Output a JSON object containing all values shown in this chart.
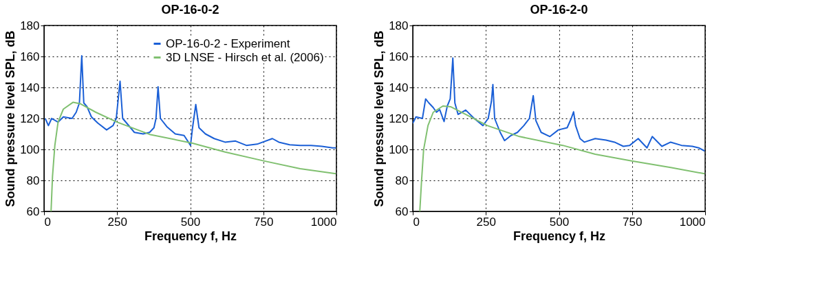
{
  "chart_data": [
    {
      "type": "line",
      "title": "OP-16-0-2",
      "xlabel": "Frequency f, Hz",
      "ylabel": "Sound pressure level SPL, dB",
      "xlim": [
        0,
        1000
      ],
      "ylim": [
        60,
        180
      ],
      "xticks": [
        0,
        250,
        500,
        750,
        1000
      ],
      "yticks": [
        60,
        80,
        100,
        120,
        140,
        160,
        180
      ],
      "grid": true,
      "legend": "top right",
      "series": [
        {
          "name": "OP-16-0-2 - Experiment",
          "color": "#1a5fd6",
          "x": [
            4,
            15,
            26,
            48,
            66,
            96,
            110,
            121,
            129,
            136,
            147,
            162,
            184,
            214,
            236,
            247,
            260,
            269,
            287,
            309,
            339,
            361,
            376,
            383,
            390,
            398,
            420,
            449,
            479,
            501,
            508,
            519,
            530,
            552,
            582,
            619,
            655,
            692,
            729,
            781,
            803,
            840,
            876,
            913,
            950,
            987,
            998
          ],
          "values": [
            120,
            115.4,
            120,
            117.6,
            121,
            120,
            124,
            130,
            160.4,
            130,
            127.6,
            121,
            117,
            112.6,
            115.4,
            120,
            144,
            120,
            116,
            111,
            110,
            111,
            114,
            120,
            140.4,
            120,
            114.7,
            110,
            109,
            102.6,
            114,
            129,
            114,
            110,
            107,
            104.7,
            105.4,
            102.6,
            103.4,
            107,
            104.7,
            103,
            102.6,
            102.6,
            102,
            101,
            101
          ]
        },
        {
          "name": "3D LNSE - Hirsch et al. (2006)",
          "color": "#80c070",
          "x": [
            24,
            29,
            37,
            48,
            66,
            99,
            125,
            177,
            250,
            361,
            508,
            619,
            751,
            876,
            998
          ],
          "values": [
            60,
            82.6,
            102.6,
            117.6,
            126,
            130.4,
            129.4,
            124,
            117.6,
            109.7,
            104,
            98.3,
            92.6,
            87.6,
            84.3
          ]
        }
      ]
    },
    {
      "type": "line",
      "title": "OP-16-2-0",
      "xlabel": "Frequency f, Hz",
      "ylabel": "Sound pressure level SPL, dB",
      "xlim": [
        0,
        1000
      ],
      "ylim": [
        60,
        180
      ],
      "xticks": [
        0,
        250,
        500,
        750,
        1000
      ],
      "yticks": [
        60,
        80,
        100,
        120,
        140,
        160,
        180
      ],
      "grid": true,
      "series": [
        {
          "color": "#1a5fd6",
          "x": [
            0,
            11,
            33,
            44,
            55,
            70,
            81,
            92,
            107,
            118,
            128,
            137,
            144,
            155,
            181,
            210,
            240,
            258,
            269,
            274,
            280,
            299,
            314,
            336,
            358,
            380,
            399,
            412,
            421,
            439,
            469,
            498,
            528,
            542,
            550,
            557,
            572,
            587,
            624,
            661,
            690,
            720,
            742,
            771,
            801,
            819,
            852,
            882,
            919,
            956,
            978,
            998
          ],
          "values": [
            116.9,
            121,
            120,
            132.6,
            130,
            127,
            124,
            125.7,
            118,
            128,
            132.6,
            159,
            130,
            122.6,
            125.4,
            120,
            115.4,
            120,
            131,
            141.9,
            120,
            111,
            105.7,
            109,
            111,
            115.4,
            120,
            134.7,
            118.6,
            111,
            108.3,
            112.6,
            114,
            120,
            124.3,
            115.4,
            107,
            104.7,
            107,
            106,
            104.7,
            102,
            102.6,
            107,
            101,
            108.3,
            102,
            104.7,
            102.6,
            102,
            101,
            99
          ]
        },
        {
          "color": "#80c070",
          "x": [
            24,
            30,
            37,
            52,
            70,
            103,
            129,
            181,
            255,
            365,
            513,
            624,
            749,
            882,
            998
          ],
          "values": [
            60,
            79.7,
            99.7,
            115.4,
            124,
            128,
            127.6,
            122.6,
            115.4,
            108.3,
            102.6,
            96.9,
            92.6,
            88.3,
            84.3
          ]
        }
      ]
    }
  ]
}
